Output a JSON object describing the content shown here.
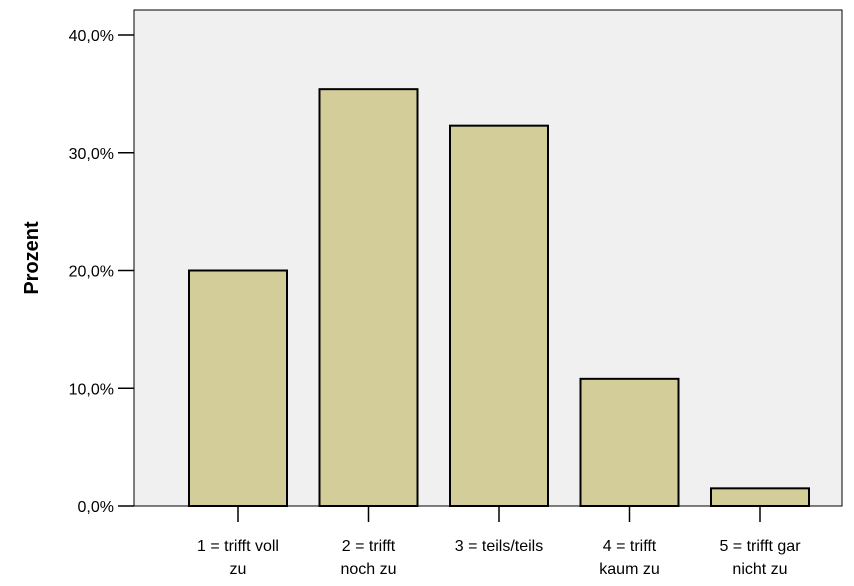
{
  "chart_data": {
    "type": "bar",
    "title": "",
    "xlabel": "",
    "ylabel": "Prozent",
    "ylim": [
      0,
      40
    ],
    "yticks": [
      0,
      10,
      20,
      30,
      40
    ],
    "ytick_labels": [
      "0,0%",
      "10,0%",
      "20,0%",
      "30,0%",
      "40,0%"
    ],
    "grid": false,
    "categories": [
      [
        "1 = trifft voll",
        "zu"
      ],
      [
        "2 = trifft",
        "noch zu"
      ],
      [
        "3 = teils/teils"
      ],
      [
        "4 = trifft",
        "kaum zu"
      ],
      [
        "5 = trifft gar",
        "nicht zu"
      ]
    ],
    "values": [
      20.0,
      35.4,
      32.3,
      10.8,
      1.5
    ],
    "colors": {
      "plot_background": "#f0f0f0",
      "bar_fill": "#d3ce99",
      "bar_stroke": "#000000"
    }
  }
}
